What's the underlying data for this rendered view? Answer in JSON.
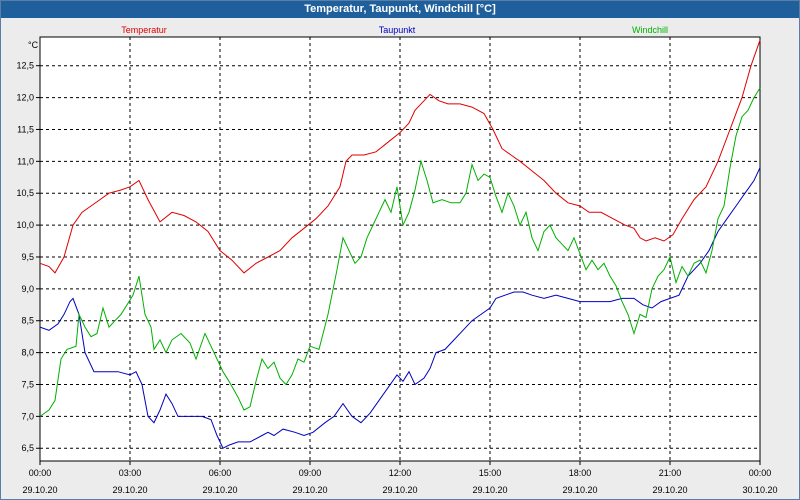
{
  "window": {
    "title": "Temperatur, Taupunkt, Windchill [°C]"
  },
  "chart_data": {
    "type": "line",
    "title": "Temperatur, Taupunkt, Windchill [°C]",
    "ylabel": "°C",
    "ylim": [
      6.3,
      12.95
    ],
    "xlim": [
      0,
      24
    ],
    "grid": true,
    "legend_position": "top",
    "y_ticks": [
      "6,5",
      "7,0",
      "7,5",
      "8,0",
      "8,5",
      "9,0",
      "9,5",
      "10,0",
      "10,5",
      "11,0",
      "11,5",
      "12,0",
      "12,5"
    ],
    "x_ticks": [
      {
        "time": "00:00",
        "date": "29.10.20"
      },
      {
        "time": "03:00",
        "date": "29.10.20"
      },
      {
        "time": "06:00",
        "date": "29.10.20"
      },
      {
        "time": "09:00",
        "date": "29.10.20"
      },
      {
        "time": "12:00",
        "date": "29.10.20"
      },
      {
        "time": "15:00",
        "date": "29.10.20"
      },
      {
        "time": "18:00",
        "date": "29.10.20"
      },
      {
        "time": "21:00",
        "date": "29.10.20"
      },
      {
        "time": "00:00",
        "date": "30.10.20"
      }
    ],
    "series": [
      {
        "name": "Temperatur",
        "color": "#e00000",
        "points": [
          [
            0,
            9.4
          ],
          [
            0.3,
            9.35
          ],
          [
            0.5,
            9.25
          ],
          [
            0.8,
            9.5
          ],
          [
            1.1,
            10.0
          ],
          [
            1.4,
            10.2
          ],
          [
            1.7,
            10.3
          ],
          [
            2.0,
            10.4
          ],
          [
            2.3,
            10.5
          ],
          [
            2.7,
            10.55
          ],
          [
            3.0,
            10.6
          ],
          [
            3.3,
            10.7
          ],
          [
            3.6,
            10.4
          ],
          [
            4.0,
            10.05
          ],
          [
            4.4,
            10.2
          ],
          [
            4.8,
            10.15
          ],
          [
            5.2,
            10.05
          ],
          [
            5.6,
            9.9
          ],
          [
            6.0,
            9.6
          ],
          [
            6.4,
            9.45
          ],
          [
            6.8,
            9.25
          ],
          [
            7.2,
            9.4
          ],
          [
            7.6,
            9.5
          ],
          [
            8.0,
            9.6
          ],
          [
            8.4,
            9.8
          ],
          [
            8.8,
            9.95
          ],
          [
            9.2,
            10.1
          ],
          [
            9.6,
            10.3
          ],
          [
            10.0,
            10.6
          ],
          [
            10.2,
            11.0
          ],
          [
            10.4,
            11.1
          ],
          [
            10.8,
            11.1
          ],
          [
            11.2,
            11.15
          ],
          [
            11.6,
            11.3
          ],
          [
            12.0,
            11.45
          ],
          [
            12.3,
            11.6
          ],
          [
            12.5,
            11.8
          ],
          [
            12.8,
            11.95
          ],
          [
            13.0,
            12.05
          ],
          [
            13.3,
            11.95
          ],
          [
            13.6,
            11.9
          ],
          [
            14.0,
            11.9
          ],
          [
            14.4,
            11.85
          ],
          [
            14.8,
            11.75
          ],
          [
            15.1,
            11.5
          ],
          [
            15.4,
            11.2
          ],
          [
            15.7,
            11.1
          ],
          [
            16.0,
            11.0
          ],
          [
            16.4,
            10.85
          ],
          [
            16.8,
            10.7
          ],
          [
            17.2,
            10.5
          ],
          [
            17.6,
            10.35
          ],
          [
            18.0,
            10.3
          ],
          [
            18.3,
            10.2
          ],
          [
            18.7,
            10.2
          ],
          [
            19.1,
            10.1
          ],
          [
            19.5,
            10.0
          ],
          [
            19.8,
            9.95
          ],
          [
            20.0,
            9.8
          ],
          [
            20.2,
            9.75
          ],
          [
            20.5,
            9.8
          ],
          [
            20.8,
            9.75
          ],
          [
            21.1,
            9.85
          ],
          [
            21.4,
            10.1
          ],
          [
            21.8,
            10.4
          ],
          [
            22.2,
            10.6
          ],
          [
            22.6,
            11.0
          ],
          [
            23.0,
            11.5
          ],
          [
            23.4,
            12.0
          ],
          [
            23.7,
            12.5
          ],
          [
            24.0,
            12.9
          ]
        ]
      },
      {
        "name": "Taupunkt",
        "color": "#0000c0",
        "points": [
          [
            0,
            8.4
          ],
          [
            0.3,
            8.35
          ],
          [
            0.6,
            8.45
          ],
          [
            0.8,
            8.6
          ],
          [
            1.0,
            8.8
          ],
          [
            1.1,
            8.85
          ],
          [
            1.3,
            8.6
          ],
          [
            1.5,
            8.0
          ],
          [
            1.8,
            7.7
          ],
          [
            2.2,
            7.7
          ],
          [
            2.6,
            7.7
          ],
          [
            3.0,
            7.65
          ],
          [
            3.2,
            7.7
          ],
          [
            3.4,
            7.5
          ],
          [
            3.6,
            7.0
          ],
          [
            3.8,
            6.9
          ],
          [
            4.0,
            7.1
          ],
          [
            4.2,
            7.35
          ],
          [
            4.4,
            7.2
          ],
          [
            4.6,
            7.0
          ],
          [
            5.0,
            7.0
          ],
          [
            5.4,
            7.0
          ],
          [
            5.7,
            6.95
          ],
          [
            5.9,
            6.7
          ],
          [
            6.1,
            6.5
          ],
          [
            6.3,
            6.55
          ],
          [
            6.6,
            6.6
          ],
          [
            7.0,
            6.6
          ],
          [
            7.4,
            6.7
          ],
          [
            7.6,
            6.75
          ],
          [
            7.8,
            6.7
          ],
          [
            8.1,
            6.8
          ],
          [
            8.5,
            6.75
          ],
          [
            8.8,
            6.7
          ],
          [
            9.1,
            6.75
          ],
          [
            9.5,
            6.9
          ],
          [
            9.8,
            7.0
          ],
          [
            10.1,
            7.2
          ],
          [
            10.4,
            7.0
          ],
          [
            10.7,
            6.9
          ],
          [
            11.0,
            7.05
          ],
          [
            11.3,
            7.25
          ],
          [
            11.6,
            7.45
          ],
          [
            11.9,
            7.65
          ],
          [
            12.1,
            7.55
          ],
          [
            12.3,
            7.7
          ],
          [
            12.5,
            7.5
          ],
          [
            12.8,
            7.6
          ],
          [
            13.0,
            7.75
          ],
          [
            13.2,
            8.0
          ],
          [
            13.5,
            8.05
          ],
          [
            13.8,
            8.2
          ],
          [
            14.1,
            8.35
          ],
          [
            14.4,
            8.5
          ],
          [
            14.7,
            8.6
          ],
          [
            15.0,
            8.7
          ],
          [
            15.2,
            8.85
          ],
          [
            15.5,
            8.9
          ],
          [
            15.8,
            8.95
          ],
          [
            16.1,
            8.95
          ],
          [
            16.4,
            8.9
          ],
          [
            16.8,
            8.85
          ],
          [
            17.2,
            8.9
          ],
          [
            17.6,
            8.85
          ],
          [
            18.0,
            8.8
          ],
          [
            18.5,
            8.8
          ],
          [
            19.0,
            8.8
          ],
          [
            19.4,
            8.85
          ],
          [
            19.8,
            8.85
          ],
          [
            20.1,
            8.75
          ],
          [
            20.4,
            8.7
          ],
          [
            20.7,
            8.8
          ],
          [
            21.0,
            8.85
          ],
          [
            21.3,
            8.9
          ],
          [
            21.6,
            9.2
          ],
          [
            22.0,
            9.4
          ],
          [
            22.3,
            9.6
          ],
          [
            22.6,
            9.9
          ],
          [
            22.9,
            10.1
          ],
          [
            23.2,
            10.3
          ],
          [
            23.5,
            10.5
          ],
          [
            23.8,
            10.7
          ],
          [
            24.0,
            10.9
          ]
        ]
      },
      {
        "name": "Windchill",
        "color": "#00b000",
        "points": [
          [
            0,
            7.0
          ],
          [
            0.3,
            7.1
          ],
          [
            0.5,
            7.25
          ],
          [
            0.7,
            7.9
          ],
          [
            0.9,
            8.05
          ],
          [
            1.2,
            8.1
          ],
          [
            1.3,
            8.6
          ],
          [
            1.5,
            8.4
          ],
          [
            1.7,
            8.25
          ],
          [
            1.9,
            8.3
          ],
          [
            2.1,
            8.7
          ],
          [
            2.3,
            8.4
          ],
          [
            2.5,
            8.5
          ],
          [
            2.7,
            8.6
          ],
          [
            2.9,
            8.75
          ],
          [
            3.1,
            8.9
          ],
          [
            3.3,
            9.2
          ],
          [
            3.5,
            8.6
          ],
          [
            3.7,
            8.4
          ],
          [
            3.8,
            8.05
          ],
          [
            4.0,
            8.2
          ],
          [
            4.2,
            8.0
          ],
          [
            4.4,
            8.2
          ],
          [
            4.7,
            8.3
          ],
          [
            5.0,
            8.15
          ],
          [
            5.2,
            7.9
          ],
          [
            5.5,
            8.3
          ],
          [
            5.7,
            8.1
          ],
          [
            5.9,
            7.9
          ],
          [
            6.1,
            7.7
          ],
          [
            6.3,
            7.55
          ],
          [
            6.6,
            7.3
          ],
          [
            6.8,
            7.1
          ],
          [
            7.0,
            7.15
          ],
          [
            7.2,
            7.55
          ],
          [
            7.4,
            7.9
          ],
          [
            7.6,
            7.75
          ],
          [
            7.8,
            7.85
          ],
          [
            8.0,
            7.6
          ],
          [
            8.2,
            7.5
          ],
          [
            8.4,
            7.65
          ],
          [
            8.6,
            7.9
          ],
          [
            8.8,
            7.85
          ],
          [
            9.0,
            8.1
          ],
          [
            9.3,
            8.05
          ],
          [
            9.6,
            8.6
          ],
          [
            9.9,
            9.3
          ],
          [
            10.1,
            9.8
          ],
          [
            10.3,
            9.6
          ],
          [
            10.5,
            9.4
          ],
          [
            10.7,
            9.5
          ],
          [
            10.9,
            9.8
          ],
          [
            11.1,
            10.0
          ],
          [
            11.3,
            10.2
          ],
          [
            11.5,
            10.4
          ],
          [
            11.7,
            10.2
          ],
          [
            11.9,
            10.6
          ],
          [
            12.1,
            10.0
          ],
          [
            12.3,
            10.2
          ],
          [
            12.5,
            10.55
          ],
          [
            12.7,
            11.0
          ],
          [
            12.9,
            10.7
          ],
          [
            13.1,
            10.35
          ],
          [
            13.4,
            10.4
          ],
          [
            13.7,
            10.35
          ],
          [
            14.0,
            10.35
          ],
          [
            14.2,
            10.5
          ],
          [
            14.4,
            10.95
          ],
          [
            14.6,
            10.7
          ],
          [
            14.8,
            10.8
          ],
          [
            15.0,
            10.75
          ],
          [
            15.2,
            10.45
          ],
          [
            15.4,
            10.2
          ],
          [
            15.6,
            10.5
          ],
          [
            15.8,
            10.3
          ],
          [
            16.0,
            10.0
          ],
          [
            16.2,
            10.2
          ],
          [
            16.4,
            9.8
          ],
          [
            16.6,
            9.6
          ],
          [
            16.8,
            9.9
          ],
          [
            17.0,
            10.0
          ],
          [
            17.2,
            9.8
          ],
          [
            17.4,
            9.7
          ],
          [
            17.6,
            9.6
          ],
          [
            17.8,
            9.8
          ],
          [
            18.0,
            9.55
          ],
          [
            18.2,
            9.3
          ],
          [
            18.4,
            9.45
          ],
          [
            18.6,
            9.3
          ],
          [
            18.8,
            9.4
          ],
          [
            19.0,
            9.2
          ],
          [
            19.2,
            9.05
          ],
          [
            19.4,
            8.8
          ],
          [
            19.6,
            8.6
          ],
          [
            19.8,
            8.3
          ],
          [
            20.0,
            8.6
          ],
          [
            20.2,
            8.55
          ],
          [
            20.4,
            9.0
          ],
          [
            20.6,
            9.2
          ],
          [
            20.8,
            9.3
          ],
          [
            21.0,
            9.5
          ],
          [
            21.2,
            9.1
          ],
          [
            21.4,
            9.35
          ],
          [
            21.6,
            9.2
          ],
          [
            21.8,
            9.4
          ],
          [
            22.0,
            9.45
          ],
          [
            22.2,
            9.25
          ],
          [
            22.4,
            9.6
          ],
          [
            22.6,
            10.1
          ],
          [
            22.8,
            10.3
          ],
          [
            23.0,
            10.9
          ],
          [
            23.2,
            11.4
          ],
          [
            23.4,
            11.7
          ],
          [
            23.6,
            11.8
          ],
          [
            23.8,
            12.0
          ],
          [
            24.0,
            12.15
          ]
        ]
      }
    ]
  }
}
